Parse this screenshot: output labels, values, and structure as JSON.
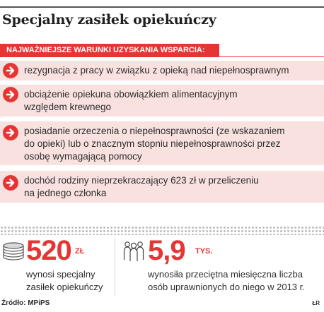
{
  "title": "Specjalny zasiłek opiekuńczy",
  "conditions_header": "NAJWAŻNIEJSZE WARUNKI UZYSKANIA WSPARCIA:",
  "conditions": [
    {
      "lines": [
        "rezygnacja z pracy w związku z opieką nad niepełnosprawnym"
      ]
    },
    {
      "lines": [
        "obciążenie opiekuna obowiązkiem alimentacyjnym",
        "względem krewnego"
      ]
    },
    {
      "lines": [
        "posiadanie orzeczenia o niepełnosprawności (ze wskazaniem",
        "do opieki) lub o znacznym stopniu niepełnosprawności przez",
        "osobę wymagającą pomocy"
      ]
    },
    {
      "lines": [
        "dochód rodziny nieprzekraczający 623 zł w przeliczeniu",
        "na jednego członka"
      ]
    }
  ],
  "stats": [
    {
      "icon": "coins-icon",
      "value": "520",
      "unit": "ZŁ",
      "desc_lines": [
        "wynosi specjalny",
        "zasiłek opiekuńczy"
      ]
    },
    {
      "icon": "people-icon",
      "value": "5,9",
      "unit": "TYS.",
      "desc_lines": [
        "wynosiła przeciętna miesięczna liczba",
        "osób uprawnionych do niego w 2013 r."
      ]
    }
  ],
  "source": "Źródło: MPiPS",
  "credit": "ŁR",
  "colors": {
    "accent": "#e63535",
    "band": "#f8e1df"
  }
}
